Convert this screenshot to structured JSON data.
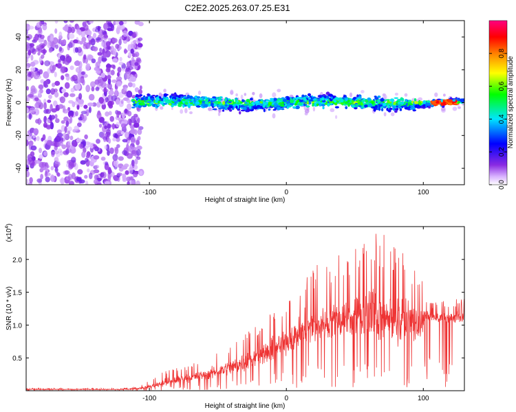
{
  "title": "C2E2.2025.263.07.25.E31",
  "chart_data": [
    {
      "type": "heatmap",
      "xlabel": "Height of straight line (km)",
      "ylabel": "Frequency (Hz)",
      "xlim": [
        -190,
        130
      ],
      "ylim": [
        -50,
        50
      ],
      "x_ticks": [
        -100,
        0,
        100
      ],
      "x_tick_labels": [
        "-100",
        "0",
        "100"
      ],
      "y_ticks": [
        -40,
        -20,
        0,
        20,
        40
      ],
      "y_tick_labels": [
        "-40",
        "-20",
        "0",
        "20",
        "40"
      ],
      "colorbar": {
        "label": "Normalized spectral amplitude",
        "range": [
          0,
          1
        ],
        "ticks": [
          0.0,
          0.2,
          0.4,
          0.6,
          0.8
        ],
        "tick_labels": [
          "0.0",
          "0.2",
          "0.4",
          "0.6",
          "0.8"
        ],
        "colors": [
          "#ffffff",
          "#d9b3ff",
          "#8a2be2",
          "#0000ff",
          "#00e5ff",
          "#00ff00",
          "#ffff00",
          "#ff8000",
          "#ff0000",
          "#ff0080"
        ]
      },
      "regions": [
        {
          "name": "noise",
          "x_range": [
            -190,
            -112
          ],
          "freq_range": [
            -50,
            50
          ],
          "amplitude_range": [
            0.0,
            0.15
          ]
        },
        {
          "name": "signal-band",
          "x_range": [
            -112,
            130
          ],
          "center_freq": 0,
          "half_width_hz": 5,
          "amplitude_range": [
            0.1,
            1.0
          ],
          "peak_amplitude_near_x": [
            105,
            125
          ]
        }
      ]
    },
    {
      "type": "line",
      "title": "",
      "xlabel": "Height of straight line (km)",
      "ylabel": "SNR (10 * v/v)",
      "y_multiplier_label": "(x10",
      "y_multiplier_exp": "4",
      "y_multiplier_close": ")",
      "xlim": [
        -190,
        130
      ],
      "ylim": [
        0,
        2.5
      ],
      "x_ticks": [
        -100,
        0,
        100
      ],
      "x_tick_labels": [
        "-100",
        "0",
        "100"
      ],
      "y_ticks": [
        0.5,
        1.0,
        1.5,
        2.0
      ],
      "y_tick_labels": [
        "0.5",
        "1.0",
        "1.5",
        "2.0"
      ],
      "series": [
        {
          "name": "SNR",
          "color": "#ee3333",
          "envelope_x": [
            -190,
            -120,
            -110,
            -100,
            -90,
            -80,
            -70,
            -60,
            -50,
            -40,
            -30,
            -20,
            -10,
            0,
            10,
            20,
            30,
            40,
            50,
            60,
            70,
            80,
            90,
            98,
            102,
            110,
            120,
            130
          ],
          "envelope_mean": [
            0.02,
            0.02,
            0.03,
            0.06,
            0.12,
            0.16,
            0.2,
            0.24,
            0.3,
            0.36,
            0.45,
            0.52,
            0.62,
            0.75,
            0.9,
            1.0,
            1.05,
            1.1,
            1.12,
            1.15,
            1.1,
            1.1,
            1.05,
            1.0,
            1.15,
            1.1,
            1.1,
            1.12
          ],
          "envelope_max": [
            0.04,
            0.04,
            0.06,
            0.15,
            0.3,
            0.35,
            0.4,
            0.5,
            0.6,
            0.75,
            0.9,
            1.0,
            1.2,
            1.4,
            1.65,
            1.9,
            2.0,
            2.1,
            2.2,
            2.5,
            2.4,
            2.2,
            2.0,
            1.8,
            1.35,
            1.35,
            1.4,
            1.4
          ]
        }
      ]
    }
  ]
}
